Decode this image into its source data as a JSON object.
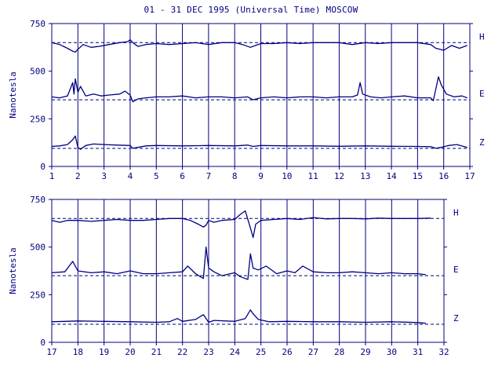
{
  "header": {
    "title": "01 - 31 DEC 1995 (Universal Time) MOSCOW"
  },
  "colors": {
    "ink": "#000080",
    "background": "#ffffff"
  },
  "chart_data": [
    {
      "type": "line",
      "ylabel": "Nanotesla",
      "ylim": [
        0,
        750
      ],
      "yticks": [
        "0",
        "250",
        "500",
        "750"
      ],
      "xlim": [
        1,
        17
      ],
      "xticks": [
        "1",
        "2",
        "3",
        "4",
        "5",
        "6",
        "7",
        "8",
        "9",
        "10",
        "11",
        "12",
        "13",
        "14",
        "15",
        "16",
        "17"
      ],
      "grid": "vertical lines at each day",
      "series": [
        {
          "name": "H",
          "baseline": 650,
          "x": [
            1,
            1.3,
            1.6,
            1.8,
            1.9,
            2.0,
            2.2,
            2.5,
            2.8,
            3.2,
            3.6,
            3.9,
            4.0,
            4.1,
            4.3,
            4.6,
            5.0,
            5.5,
            6,
            6.5,
            7,
            7.5,
            8,
            8.3,
            8.6,
            8.8,
            9,
            9.5,
            10,
            10.5,
            11,
            11.5,
            12,
            12.5,
            13,
            13.5,
            14,
            14.5,
            15,
            15.5,
            15.7,
            16,
            16.3,
            16.6,
            16.9
          ],
          "values": [
            650,
            640,
            620,
            605,
            600,
            615,
            640,
            625,
            630,
            640,
            650,
            655,
            665,
            650,
            630,
            640,
            645,
            640,
            645,
            650,
            640,
            650,
            650,
            640,
            625,
            635,
            645,
            645,
            650,
            645,
            650,
            650,
            650,
            640,
            650,
            645,
            650,
            650,
            650,
            640,
            620,
            610,
            635,
            620,
            635
          ]
        },
        {
          "name": "E",
          "baseline": 350,
          "x": [
            1,
            1.3,
            1.6,
            1.8,
            1.85,
            1.9,
            2.0,
            2.1,
            2.3,
            2.6,
            2.9,
            3.2,
            3.6,
            3.8,
            4.0,
            4.1,
            4.3,
            4.6,
            5.0,
            5.5,
            6,
            6.5,
            7,
            7.5,
            8,
            8.5,
            8.7,
            9,
            9.5,
            10,
            10.5,
            11,
            11.5,
            12,
            12.5,
            12.7,
            12.8,
            12.9,
            13.2,
            13.6,
            14,
            14.5,
            15,
            15.5,
            15.6,
            15.8,
            15.9,
            16.1,
            16.4,
            16.7,
            16.9
          ],
          "values": [
            365,
            360,
            370,
            440,
            380,
            460,
            390,
            420,
            370,
            380,
            370,
            375,
            380,
            395,
            375,
            340,
            355,
            360,
            365,
            365,
            370,
            360,
            365,
            365,
            360,
            365,
            350,
            360,
            365,
            360,
            365,
            365,
            360,
            365,
            365,
            375,
            440,
            380,
            365,
            360,
            365,
            370,
            360,
            360,
            345,
            470,
            430,
            380,
            365,
            370,
            360
          ]
        },
        {
          "name": "Z",
          "baseline": 95,
          "x": [
            1,
            1.3,
            1.6,
            1.8,
            1.9,
            2.0,
            2.1,
            2.3,
            2.6,
            3,
            3.5,
            4,
            4.1,
            4.3,
            4.6,
            5,
            6,
            7,
            8,
            8.5,
            8.7,
            9,
            10,
            11,
            12,
            13,
            14,
            15,
            15.5,
            15.7,
            15.9,
            16.2,
            16.5,
            16.9
          ],
          "values": [
            105,
            108,
            115,
            140,
            160,
            100,
            90,
            110,
            118,
            115,
            112,
            110,
            95,
            100,
            108,
            110,
            108,
            110,
            108,
            112,
            105,
            110,
            108,
            108,
            106,
            108,
            106,
            105,
            104,
            95,
            100,
            110,
            115,
            100
          ]
        }
      ]
    },
    {
      "type": "line",
      "ylabel": "Nanotesla",
      "ylim": [
        0,
        750
      ],
      "yticks": [
        "0",
        "250",
        "500",
        "750"
      ],
      "xlim": [
        17,
        32
      ],
      "xticks": [
        "17",
        "18",
        "19",
        "20",
        "21",
        "22",
        "23",
        "24",
        "25",
        "26",
        "27",
        "28",
        "29",
        "30",
        "31",
        "32"
      ],
      "grid": "vertical lines at each day",
      "series": [
        {
          "name": "H",
          "baseline": 650,
          "x": [
            17,
            17.3,
            17.6,
            18,
            18.5,
            19,
            19.5,
            20,
            20.5,
            21,
            21.5,
            22,
            22.3,
            22.6,
            22.8,
            22.9,
            23.0,
            23.2,
            23.5,
            24,
            24.2,
            24.4,
            24.6,
            24.7,
            24.8,
            25,
            25.5,
            26,
            26.5,
            27,
            27.5,
            28,
            28.5,
            29,
            29.5,
            30,
            30.5,
            31,
            31.5
          ],
          "values": [
            640,
            630,
            640,
            640,
            635,
            640,
            645,
            640,
            640,
            645,
            650,
            650,
            640,
            620,
            605,
            615,
            640,
            630,
            640,
            645,
            670,
            690,
            600,
            550,
            620,
            640,
            645,
            650,
            645,
            655,
            648,
            650,
            650,
            648,
            652,
            650,
            650,
            650,
            652
          ]
        },
        {
          "name": "E",
          "baseline": 350,
          "x": [
            17,
            17.5,
            17.8,
            18,
            18.5,
            19,
            19.5,
            20,
            20.5,
            21,
            21.5,
            22,
            22.2,
            22.5,
            22.8,
            22.9,
            23.0,
            23.2,
            23.5,
            24,
            24.2,
            24.5,
            24.6,
            24.7,
            24.9,
            25.2,
            25.6,
            26,
            26.3,
            26.6,
            27,
            27.5,
            28,
            28.5,
            29,
            29.5,
            30,
            30.5,
            31,
            31.3
          ],
          "values": [
            365,
            370,
            425,
            375,
            365,
            370,
            360,
            375,
            360,
            360,
            365,
            370,
            400,
            360,
            335,
            500,
            390,
            370,
            350,
            365,
            345,
            330,
            465,
            390,
            380,
            400,
            360,
            375,
            365,
            400,
            370,
            365,
            365,
            370,
            365,
            360,
            365,
            360,
            360,
            355
          ]
        },
        {
          "name": "Z",
          "baseline": 95,
          "x": [
            17,
            18,
            19,
            20,
            21,
            21.5,
            21.8,
            22,
            22.5,
            22.8,
            23,
            23.2,
            24,
            24.4,
            24.6,
            24.7,
            24.9,
            25.3,
            26,
            27,
            28,
            29,
            30,
            31,
            31.3
          ],
          "values": [
            108,
            112,
            110,
            108,
            105,
            108,
            125,
            110,
            120,
            145,
            105,
            115,
            110,
            125,
            170,
            150,
            120,
            108,
            110,
            108,
            108,
            105,
            108,
            104,
            100
          ]
        }
      ]
    }
  ]
}
